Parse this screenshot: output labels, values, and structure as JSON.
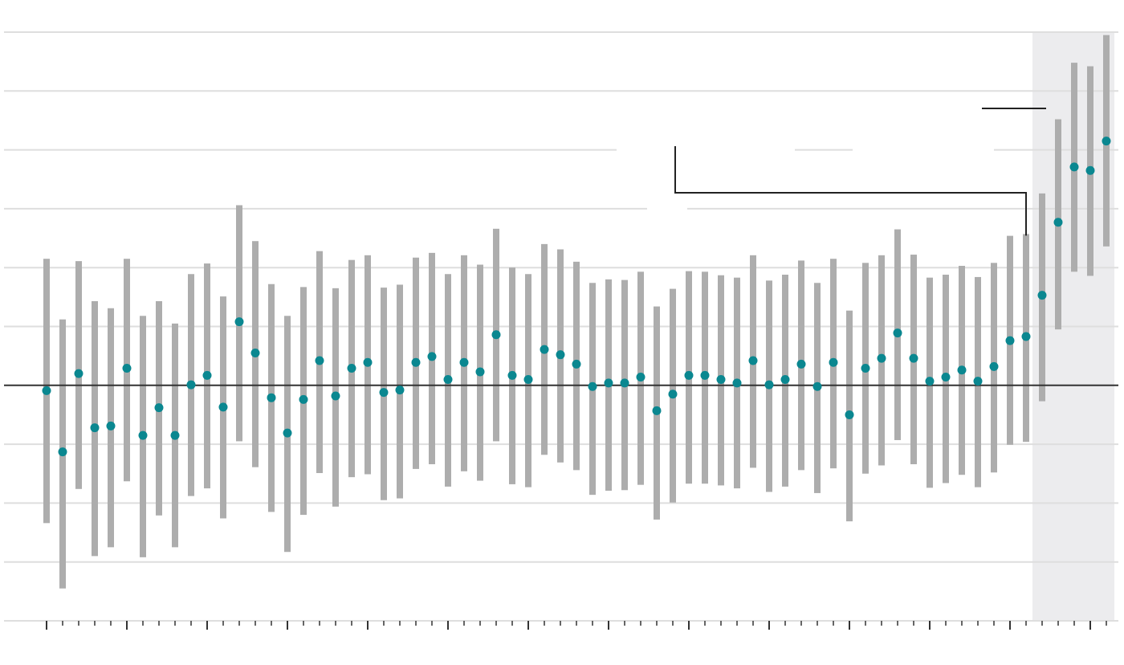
{
  "chart_data": {
    "type": "errorbar",
    "title": "",
    "xlabel": "",
    "ylabel": "",
    "ylim": [
      -4,
      6
    ],
    "zero_line": 0,
    "grid": true,
    "highlight_last_n": 5,
    "colors": {
      "point": "#0a8790",
      "range": "#adadad",
      "grid": "#dedede",
      "zero_line": "#333333",
      "highlight_band": "#ececee",
      "annotation": "#222222"
    },
    "series": [
      {
        "points": [
          -0.09,
          -1.13,
          0.2,
          -0.72,
          -0.69,
          0.29,
          -0.85,
          -0.38,
          -0.85,
          0.01,
          0.17,
          -0.37,
          1.08,
          0.55,
          -0.21,
          -0.81,
          -0.24,
          0.42,
          -0.18,
          0.29,
          0.39,
          -0.12,
          -0.08,
          0.39,
          0.49,
          0.1,
          0.39,
          0.23,
          0.86,
          0.17,
          0.1,
          0.61,
          0.52,
          0.36,
          -0.02,
          0.04,
          0.04,
          0.14,
          -0.43,
          -0.15,
          0.17,
          0.17,
          0.1,
          0.04,
          0.42,
          0.01,
          0.1,
          0.36,
          -0.02,
          0.39,
          -0.5,
          0.29,
          0.46,
          0.89,
          0.46,
          0.07,
          0.14,
          0.26,
          0.07,
          0.32,
          0.76,
          0.83,
          1.53,
          2.77,
          3.71,
          3.65,
          4.15
        ],
        "upper": [
          2.15,
          1.12,
          2.11,
          1.43,
          1.31,
          2.15,
          1.18,
          1.43,
          1.05,
          1.89,
          2.07,
          1.51,
          3.06,
          2.45,
          1.72,
          1.18,
          1.67,
          2.28,
          1.65,
          2.13,
          2.21,
          1.66,
          1.71,
          2.17,
          2.25,
          1.89,
          2.21,
          2.05,
          2.66,
          2.0,
          1.89,
          2.4,
          2.31,
          2.1,
          1.74,
          1.8,
          1.79,
          1.93,
          1.34,
          1.64,
          1.94,
          1.93,
          1.87,
          1.83,
          2.21,
          1.78,
          1.88,
          2.12,
          1.74,
          2.15,
          1.27,
          2.08,
          2.21,
          2.65,
          2.22,
          1.83,
          1.88,
          2.03,
          1.84,
          2.08,
          2.54,
          2.57,
          3.26,
          4.52,
          5.48,
          5.42,
          5.95
        ],
        "lower": [
          -2.34,
          -3.45,
          -1.76,
          -2.9,
          -2.75,
          -1.63,
          -2.92,
          -2.21,
          -2.75,
          -1.88,
          -1.75,
          -2.26,
          -0.95,
          -1.39,
          -2.15,
          -2.83,
          -2.2,
          -1.49,
          -2.06,
          -1.56,
          -1.51,
          -1.95,
          -1.92,
          -1.42,
          -1.34,
          -1.72,
          -1.46,
          -1.62,
          -0.95,
          -1.68,
          -1.73,
          -1.18,
          -1.31,
          -1.44,
          -1.86,
          -1.79,
          -1.78,
          -1.69,
          -2.28,
          -1.99,
          -1.67,
          -1.67,
          -1.7,
          -1.75,
          -1.4,
          -1.81,
          -1.72,
          -1.44,
          -1.83,
          -1.41,
          -2.31,
          -1.5,
          -1.36,
          -0.93,
          -1.34,
          -1.74,
          -1.66,
          -1.52,
          -1.73,
          -1.48,
          -1.01,
          -0.96,
          -0.27,
          0.95,
          1.93,
          1.86,
          2.36
        ]
      }
    ]
  }
}
